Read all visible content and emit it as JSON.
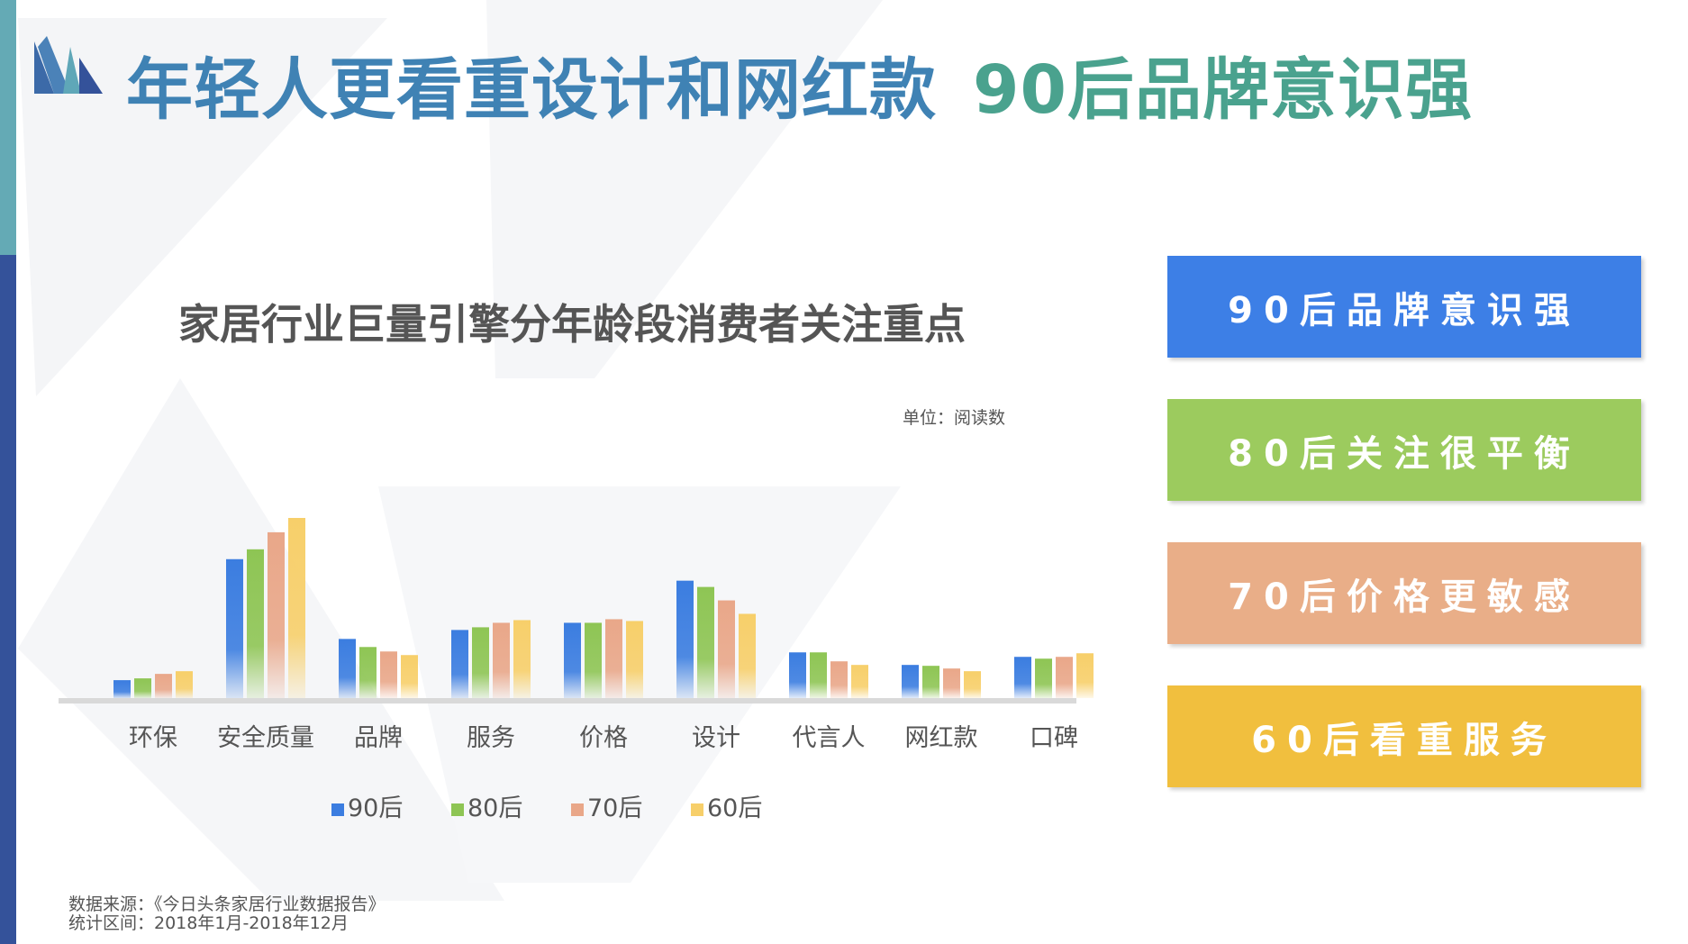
{
  "title": {
    "part1": "年轻人更看重设计和网红款",
    "part2": "90后品牌意识强"
  },
  "colors": {
    "title_part1": "#3f82b4",
    "title_part2": "#4aa28e",
    "sidebar_top": "#64aab5",
    "sidebar_bottom": "#34529a",
    "series": [
      "#3b7de0",
      "#8ec554",
      "#e9a789",
      "#f7cf6a"
    ]
  },
  "chart_data": {
    "type": "bar",
    "title": "家居行业巨量引擎分年龄段消费者关注重点",
    "unit_label": "单位：阅读数",
    "categories": [
      "环保",
      "安全质量",
      "品牌",
      "服务",
      "价格",
      "设计",
      "代言人",
      "网红款",
      "口碑"
    ],
    "series": [
      {
        "name": "90后",
        "values": [
          20,
          155,
          66,
          76,
          84,
          131,
          51,
          37,
          46
        ]
      },
      {
        "name": "80后",
        "values": [
          22,
          166,
          57,
          79,
          84,
          124,
          51,
          36,
          44
        ]
      },
      {
        "name": "70后",
        "values": [
          27,
          185,
          52,
          84,
          88,
          109,
          41,
          33,
          46
        ]
      },
      {
        "name": "60后",
        "values": [
          30,
          201,
          48,
          87,
          86,
          94,
          37,
          30,
          50
        ]
      }
    ],
    "legend_position": "bottom",
    "grid": false
  },
  "panels": [
    {
      "text": "90后品牌意识强",
      "color": "#3d7fe6"
    },
    {
      "text": "80后关注很平衡",
      "color": "#9ccb5e"
    },
    {
      "text": "70后价格更敏感",
      "color": "#e9ae88"
    },
    {
      "text": "60后看重服务",
      "color": "#f1bf3e"
    }
  ],
  "source": {
    "line1": "数据来源：《今日头条家居行业数据报告》",
    "line2": "统计区间：2018年1月-2018年12月"
  },
  "icons": {
    "logo": "book-logo-icon"
  }
}
